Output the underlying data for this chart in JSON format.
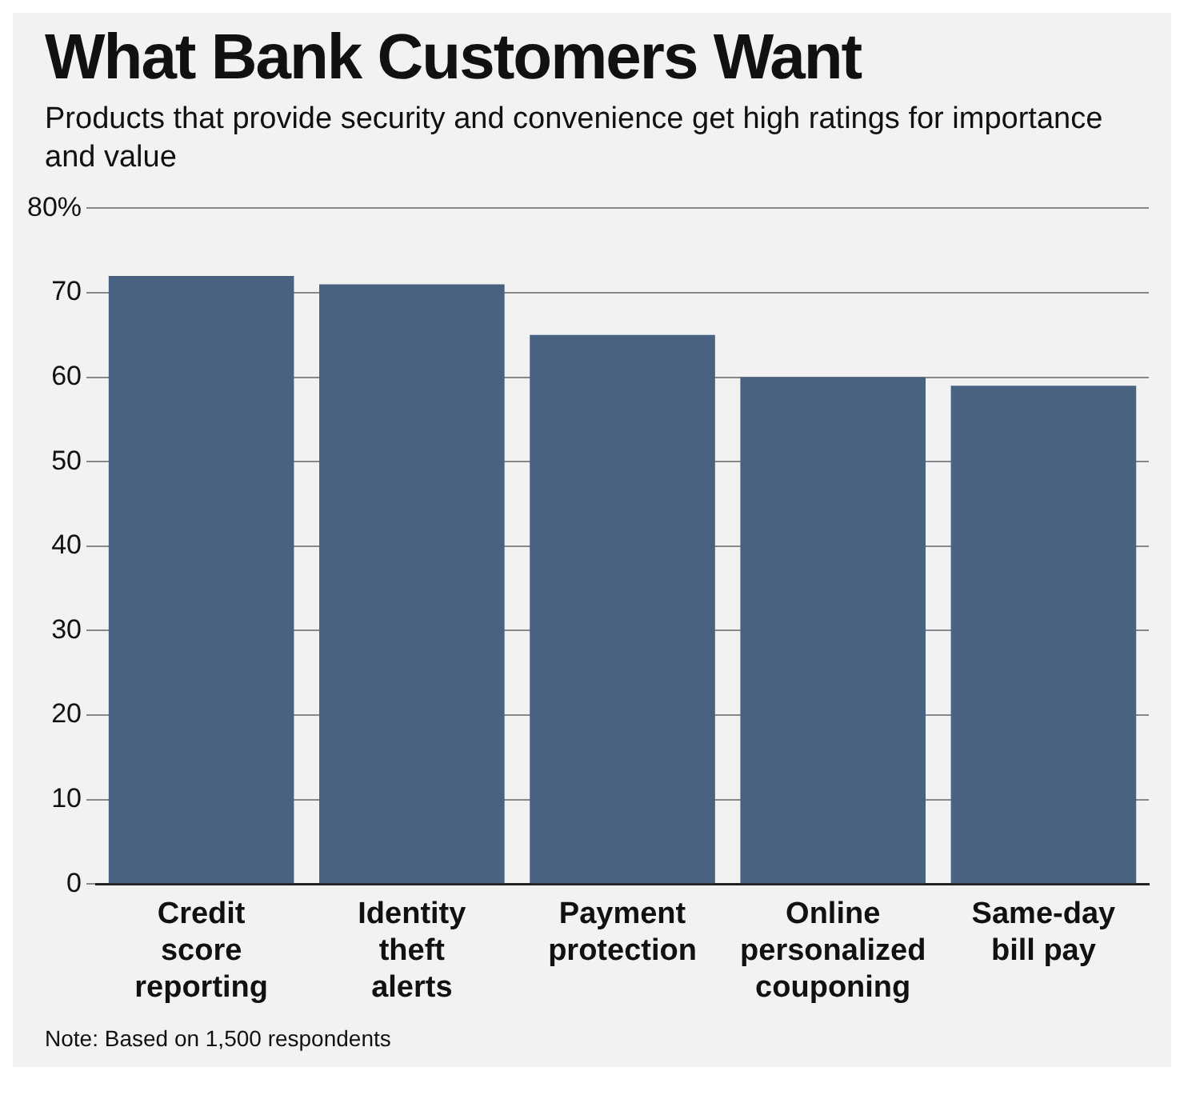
{
  "chart_data": {
    "type": "bar",
    "title": "What Bank Customers Want",
    "subtitle": "Products that provide security and convenience get high ratings for importance and value",
    "categories": [
      "Credit score reporting",
      "Identity theft alerts",
      "Payment protection",
      "Online personalized couponing",
      "Same-day bill pay"
    ],
    "values": [
      72,
      71,
      65,
      60,
      59
    ],
    "color": "#4a6282",
    "ylim": [
      0,
      80
    ],
    "yticks": [
      0,
      10,
      20,
      30,
      40,
      50,
      60,
      70,
      {
        "value": 80,
        "label": "80%"
      }
    ],
    "grid": "y",
    "annotations": [
      "Note: Based on 1,500 respondents"
    ]
  }
}
